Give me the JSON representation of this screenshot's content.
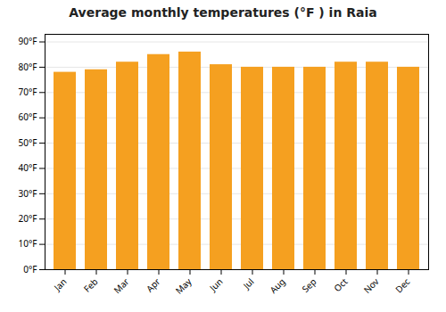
{
  "chart_data": {
    "type": "bar",
    "title": "Average monthly temperatures (°F ) in Raia",
    "categories": [
      "Jan",
      "Feb",
      "Mar",
      "Apr",
      "May",
      "Jun",
      "Jul",
      "Aug",
      "Sep",
      "Oct",
      "Nov",
      "Dec"
    ],
    "values": [
      78,
      79,
      82,
      85,
      86,
      81,
      80,
      80,
      80,
      82,
      82,
      80
    ],
    "color": "#F5A020",
    "ylim": [
      0,
      93
    ],
    "yticks": [
      {
        "value": 0,
        "label": "0°F"
      },
      {
        "value": 10,
        "label": "10°F"
      },
      {
        "value": 20,
        "label": "20°F"
      },
      {
        "value": 30,
        "label": "30°F"
      },
      {
        "value": 40,
        "label": "40°F"
      },
      {
        "value": 50,
        "label": "50°F"
      },
      {
        "value": 60,
        "label": "60°F"
      },
      {
        "value": 70,
        "label": "70°F"
      },
      {
        "value": 80,
        "label": "80°F"
      },
      {
        "value": 90,
        "label": "90°F"
      }
    ],
    "grid": true
  }
}
